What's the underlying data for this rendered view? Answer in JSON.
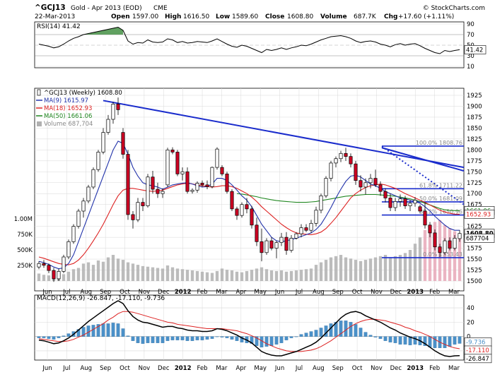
{
  "header": {
    "symbol": "^GCJ13",
    "name": "Gold - Apr 2013 (EOD)",
    "exchange": "CME",
    "copyright": "© StockCharts.com",
    "date": "22-Mar-2013",
    "open_label": "Open",
    "open": "1597.00",
    "high_label": "High",
    "high": "1616.50",
    "low_label": "Low",
    "low": "1589.60",
    "close_label": "Close",
    "close": "1608.80",
    "volume_label": "Volume",
    "volume": "687.7K",
    "chg_label": "Chg",
    "chg": "+17.60 (+1.11%)"
  },
  "colors": {
    "bg": "#ffffff",
    "grid": "#d8d8d8",
    "axis": "#000000",
    "up_candle": "#ffffff",
    "down_candle": "#cc0022",
    "ma9": "#2233aa",
    "ma18": "#dd2222",
    "ma50": "#228822",
    "trend": "#1a2ccc",
    "volume": "#b0b0b0",
    "volume_recent": "#e8a8b8",
    "macd_line": "#000000",
    "macd_signal": "#dd2222",
    "macd_hist": "#4a90c8",
    "rsi_line": "#000000",
    "rsi_fill": "#3a8a3a",
    "price_tag_bg": "#ffffff",
    "macd_tag_blue": "#4a90c8"
  },
  "rsi_panel": {
    "label": "RSI(14) 41.42",
    "current_tag": "41.42",
    "ticks": [
      "90",
      "70",
      "50",
      "30",
      "10"
    ]
  },
  "price_panel": {
    "legend": [
      {
        "text": "^GCJ13 (Weekly) 1608.80",
        "kind": "candle"
      },
      {
        "text": "MA(9) 1615.97",
        "kind": "ma9"
      },
      {
        "text": "MA(18) 1652.93",
        "kind": "ma18"
      },
      {
        "text": "MA(50) 1661.06",
        "kind": "ma50"
      },
      {
        "text": "Volume 687,704",
        "kind": "volume"
      }
    ],
    "price_ticks": [
      "1925",
      "1900",
      "1875",
      "1850",
      "1825",
      "1800",
      "1775",
      "1750",
      "1725",
      "1700",
      "1675",
      "1650",
      "1625",
      "1600",
      "1575",
      "1550",
      "1525",
      "1500"
    ],
    "volume_ticks": [
      "1.00M",
      "750K",
      "500K",
      "250K"
    ],
    "tags": {
      "ma18": "1652.93",
      "close": "1608.80",
      "ma50": "1661.06",
      "volume": "687704"
    },
    "fib_labels": [
      "100.0% 1808.76",
      "61.8% 1711.22",
      "50.0% 1681.09",
      "38.2% 1650.96",
      "0.0% 1553.43"
    ]
  },
  "macd_panel": {
    "label": "MACD(12,26,9) -26.847, -17.110, -9.736",
    "ticks": [
      "40",
      "20",
      "0",
      "-20"
    ],
    "tags": {
      "hist": "-9.736",
      "signal": "-17.110",
      "macd": "-26.847"
    }
  },
  "x_labels": [
    "Jun",
    "Jul",
    "Aug",
    "Sep",
    "Oct",
    "Nov",
    "Dec",
    "2012",
    "Feb",
    "Mar",
    "Apr",
    "May",
    "Jun",
    "Jul",
    "Aug",
    "Sep",
    "Oct",
    "Nov",
    "Dec",
    "2013",
    "Feb",
    "Mar"
  ],
  "chart_data": {
    "type": "candlestick",
    "title": "^GCJ13 Gold - Apr 2013 (EOD) CME",
    "periodicity": "Weekly",
    "price_axis": {
      "min": 1500,
      "max": 1925,
      "side": "right"
    },
    "volume_axis": {
      "max": 1250000
    },
    "date_axis": {
      "start": "2011-06",
      "end": "2013-03"
    },
    "candles": [
      [
        1532,
        1545,
        1527,
        1540
      ],
      [
        1540,
        1548,
        1530,
        1536
      ],
      [
        1536,
        1540,
        1518,
        1524
      ],
      [
        1524,
        1530,
        1498,
        1505
      ],
      [
        1505,
        1528,
        1500,
        1522
      ],
      [
        1522,
        1560,
        1518,
        1555
      ],
      [
        1555,
        1595,
        1550,
        1590
      ],
      [
        1590,
        1630,
        1585,
        1625
      ],
      [
        1625,
        1665,
        1620,
        1660
      ],
      [
        1660,
        1690,
        1645,
        1683
      ],
      [
        1683,
        1720,
        1678,
        1715
      ],
      [
        1715,
        1760,
        1710,
        1755
      ],
      [
        1755,
        1800,
        1750,
        1795
      ],
      [
        1795,
        1850,
        1790,
        1840
      ],
      [
        1840,
        1880,
        1835,
        1870
      ],
      [
        1870,
        1910,
        1860,
        1905
      ],
      [
        1905,
        1920,
        1880,
        1892
      ],
      [
        1840,
        1850,
        1780,
        1790
      ],
      [
        1790,
        1800,
        1640,
        1652
      ],
      [
        1652,
        1660,
        1620,
        1640
      ],
      [
        1640,
        1690,
        1635,
        1680
      ],
      [
        1680,
        1690,
        1660,
        1672
      ],
      [
        1672,
        1745,
        1668,
        1738
      ],
      [
        1738,
        1752,
        1700,
        1710
      ],
      [
        1710,
        1725,
        1690,
        1700
      ],
      [
        1700,
        1712,
        1690,
        1705
      ],
      [
        1720,
        1805,
        1715,
        1800
      ],
      [
        1800,
        1806,
        1790,
        1795
      ],
      [
        1795,
        1800,
        1740,
        1745
      ],
      [
        1745,
        1760,
        1730,
        1750
      ],
      [
        1750,
        1760,
        1700,
        1705
      ],
      [
        1705,
        1712,
        1700,
        1708
      ],
      [
        1708,
        1728,
        1702,
        1724
      ],
      [
        1724,
        1730,
        1715,
        1720
      ],
      [
        1720,
        1730,
        1710,
        1716
      ],
      [
        1716,
        1762,
        1712,
        1760
      ],
      [
        1760,
        1806,
        1755,
        1802
      ],
      [
        1760,
        1765,
        1740,
        1745
      ],
      [
        1745,
        1750,
        1700,
        1705
      ],
      [
        1705,
        1710,
        1660,
        1665
      ],
      [
        1665,
        1670,
        1640,
        1650
      ],
      [
        1650,
        1680,
        1645,
        1675
      ],
      [
        1675,
        1690,
        1655,
        1665
      ],
      [
        1665,
        1672,
        1620,
        1628
      ],
      [
        1628,
        1645,
        1580,
        1590
      ],
      [
        1590,
        1620,
        1545,
        1565
      ],
      [
        1565,
        1598,
        1560,
        1592
      ],
      [
        1592,
        1600,
        1570,
        1575
      ],
      [
        1575,
        1592,
        1552,
        1588
      ],
      [
        1588,
        1610,
        1580,
        1600
      ],
      [
        1600,
        1612,
        1560,
        1570
      ],
      [
        1570,
        1605,
        1565,
        1598
      ],
      [
        1598,
        1612,
        1595,
        1608
      ],
      [
        1608,
        1630,
        1600,
        1622
      ],
      [
        1622,
        1630,
        1612,
        1616
      ],
      [
        1616,
        1640,
        1610,
        1632
      ],
      [
        1632,
        1670,
        1625,
        1662
      ],
      [
        1662,
        1700,
        1655,
        1695
      ],
      [
        1695,
        1740,
        1690,
        1735
      ],
      [
        1735,
        1775,
        1728,
        1770
      ],
      [
        1770,
        1785,
        1760,
        1780
      ],
      [
        1780,
        1798,
        1772,
        1792
      ],
      [
        1792,
        1805,
        1775,
        1785
      ],
      [
        1785,
        1792,
        1760,
        1768
      ],
      [
        1768,
        1775,
        1720,
        1730
      ],
      [
        1730,
        1742,
        1705,
        1715
      ],
      [
        1715,
        1735,
        1698,
        1725
      ],
      [
        1725,
        1745,
        1712,
        1735
      ],
      [
        1735,
        1755,
        1715,
        1720
      ],
      [
        1720,
        1728,
        1695,
        1705
      ],
      [
        1705,
        1712,
        1680,
        1690
      ],
      [
        1690,
        1700,
        1660,
        1668
      ],
      [
        1668,
        1690,
        1660,
        1682
      ],
      [
        1682,
        1698,
        1670,
        1688
      ],
      [
        1688,
        1695,
        1665,
        1672
      ],
      [
        1672,
        1685,
        1660,
        1678
      ],
      [
        1678,
        1692,
        1670,
        1685
      ],
      [
        1670,
        1675,
        1655,
        1660
      ],
      [
        1660,
        1680,
        1620,
        1628
      ],
      [
        1628,
        1635,
        1600,
        1610
      ],
      [
        1610,
        1618,
        1570,
        1578
      ],
      [
        1578,
        1585,
        1555,
        1565
      ],
      [
        1565,
        1598,
        1560,
        1592
      ],
      [
        1592,
        1600,
        1570,
        1575
      ],
      [
        1575,
        1605,
        1570,
        1598
      ],
      [
        1597,
        1616.5,
        1589.6,
        1608.8
      ]
    ],
    "volume": [
      120,
      100,
      90,
      60,
      80,
      110,
      150,
      190,
      210,
      280,
      300,
      260,
      330,
      310,
      380,
      420,
      360,
      340,
      300,
      280,
      260,
      240,
      230,
      220,
      210,
      200,
      250,
      220,
      200,
      190,
      180,
      170,
      160,
      150,
      140,
      130,
      160,
      200,
      180,
      170,
      150,
      140,
      160,
      180,
      200,
      220,
      190,
      170,
      160,
      170,
      150,
      160,
      170,
      180,
      190,
      200,
      260,
      300,
      340,
      380,
      400,
      420,
      380,
      360,
      340,
      320,
      340,
      360,
      380,
      400,
      420,
      380,
      400,
      420,
      450,
      500,
      600,
      700,
      820,
      900,
      950,
      980,
      900,
      850,
      800,
      690
    ],
    "ma9": [
      1545,
      1542,
      1538,
      1532,
      1528,
      1530,
      1540,
      1560,
      1590,
      1620,
      1650,
      1680,
      1710,
      1740,
      1770,
      1800,
      1820,
      1815,
      1790,
      1760,
      1740,
      1725,
      1720,
      1718,
      1715,
      1710,
      1715,
      1720,
      1722,
      1724,
      1725,
      1722,
      1718,
      1715,
      1716,
      1722,
      1735,
      1735,
      1730,
      1720,
      1708,
      1695,
      1685,
      1670,
      1650,
      1630,
      1615,
      1600,
      1592,
      1590,
      1592,
      1595,
      1598,
      1602,
      1606,
      1610,
      1618,
      1630,
      1648,
      1668,
      1690,
      1710,
      1728,
      1740,
      1742,
      1738,
      1730,
      1722,
      1718,
      1712,
      1705,
      1700,
      1695,
      1690,
      1688,
      1685,
      1682,
      1678,
      1670,
      1660,
      1648,
      1638,
      1628,
      1620,
      1616,
      1615.97
    ],
    "ma18": [
      1555,
      1552,
      1548,
      1544,
      1540,
      1538,
      1537,
      1540,
      1548,
      1560,
      1575,
      1592,
      1610,
      1630,
      1652,
      1675,
      1695,
      1708,
      1712,
      1712,
      1710,
      1708,
      1706,
      1705,
      1706,
      1708,
      1712,
      1716,
      1720,
      1722,
      1724,
      1722,
      1720,
      1718,
      1716,
      1715,
      1716,
      1718,
      1718,
      1716,
      1712,
      1706,
      1700,
      1692,
      1682,
      1670,
      1660,
      1650,
      1640,
      1630,
      1622,
      1615,
      1610,
      1608,
      1607,
      1606,
      1608,
      1612,
      1620,
      1632,
      1645,
      1660,
      1675,
      1690,
      1700,
      1708,
      1714,
      1718,
      1720,
      1722,
      1720,
      1716,
      1712,
      1706,
      1700,
      1695,
      1690,
      1685,
      1680,
      1674,
      1668,
      1662,
      1658,
      1655,
      1653,
      1652.93
    ],
    "ma50": {
      "start_index": 40,
      "values": [
        1700,
        1699,
        1697,
        1695,
        1693,
        1690,
        1688,
        1686,
        1684,
        1683,
        1682,
        1681,
        1680,
        1680,
        1680,
        1681,
        1682,
        1684,
        1686,
        1688,
        1690,
        1692,
        1694,
        1695,
        1696,
        1697,
        1698,
        1698,
        1698,
        1697,
        1696,
        1695,
        1694,
        1692,
        1690,
        1688,
        1685,
        1682,
        1678,
        1674,
        1670,
        1666,
        1663,
        1661.5,
        1661.1,
        1661.06
      ]
    },
    "rsi": [
      52,
      50,
      48,
      45,
      47,
      52,
      58,
      63,
      66,
      70,
      72,
      74,
      76,
      78,
      80,
      82,
      84,
      78,
      58,
      52,
      55,
      54,
      60,
      56,
      55,
      56,
      62,
      60,
      55,
      57,
      54,
      55,
      57,
      56,
      55,
      58,
      62,
      57,
      52,
      48,
      46,
      50,
      48,
      44,
      40,
      36,
      42,
      40,
      42,
      45,
      42,
      45,
      47,
      50,
      49,
      52,
      56,
      60,
      63,
      66,
      67,
      68,
      66,
      63,
      58,
      55,
      57,
      58,
      56,
      52,
      50,
      47,
      51,
      53,
      50,
      52,
      53,
      49,
      44,
      40,
      36,
      34,
      40,
      38,
      40,
      41.42
    ],
    "macd": [
      -5,
      -6,
      -8,
      -10,
      -9,
      -6,
      -2,
      3,
      9,
      15,
      21,
      26,
      31,
      36,
      41,
      46,
      50,
      46,
      36,
      28,
      23,
      20,
      19,
      17,
      15,
      13,
      14,
      14,
      12,
      11,
      9,
      8,
      8,
      7,
      7,
      8,
      11,
      10,
      8,
      5,
      2,
      -2,
      -5,
      -9,
      -15,
      -21,
      -24,
      -26,
      -27,
      -27,
      -25,
      -23,
      -21,
      -18,
      -15,
      -12,
      -8,
      -2,
      5,
      12,
      19,
      26,
      31,
      34,
      35,
      33,
      29,
      26,
      23,
      20,
      16,
      12,
      9,
      5,
      2,
      -1,
      -3,
      -6,
      -10,
      -15,
      -20,
      -24,
      -27,
      -28,
      -27,
      -26.847
    ],
    "macd_signal": [
      -3,
      -4,
      -5,
      -6,
      -7,
      -7,
      -6,
      -4,
      -1,
      2,
      6,
      10,
      14,
      18,
      23,
      27,
      32,
      35,
      35,
      34,
      32,
      30,
      28,
      26,
      24,
      22,
      20,
      19,
      17,
      16,
      15,
      14,
      13,
      12,
      11,
      11,
      11,
      11,
      10,
      9,
      8,
      6,
      4,
      1,
      -2,
      -6,
      -10,
      -13,
      -16,
      -18,
      -20,
      -21,
      -21,
      -21,
      -20,
      -19,
      -17,
      -14,
      -10,
      -6,
      -1,
      4,
      9,
      14,
      18,
      21,
      23,
      24,
      24,
      23,
      22,
      20,
      18,
      16,
      13,
      11,
      8,
      6,
      3,
      0,
      -4,
      -8,
      -11,
      -14,
      -16,
      -17.11
    ],
    "macd_hist_note": "histogram = macd - macd_signal",
    "trendlines": [
      {
        "from": [
          "2011-09",
          1913
        ],
        "to": [
          "2013-03",
          1760
        ]
      },
      {
        "from": [
          "2012-10",
          1805
        ],
        "to": [
          "2013-03",
          1752
        ]
      },
      {
        "from": [
          "2012-10",
          1808
        ],
        "to": [
          "2013-03",
          1675
        ],
        "style": "dotted"
      }
    ],
    "fibonacci": [
      {
        "level": "100.0%",
        "price": 1808.76
      },
      {
        "level": "61.8%",
        "price": 1711.22
      },
      {
        "level": "50.0%",
        "price": 1681.09
      },
      {
        "level": "38.2%",
        "price": 1650.96
      },
      {
        "level": "0.0%",
        "price": 1553.43
      }
    ]
  }
}
